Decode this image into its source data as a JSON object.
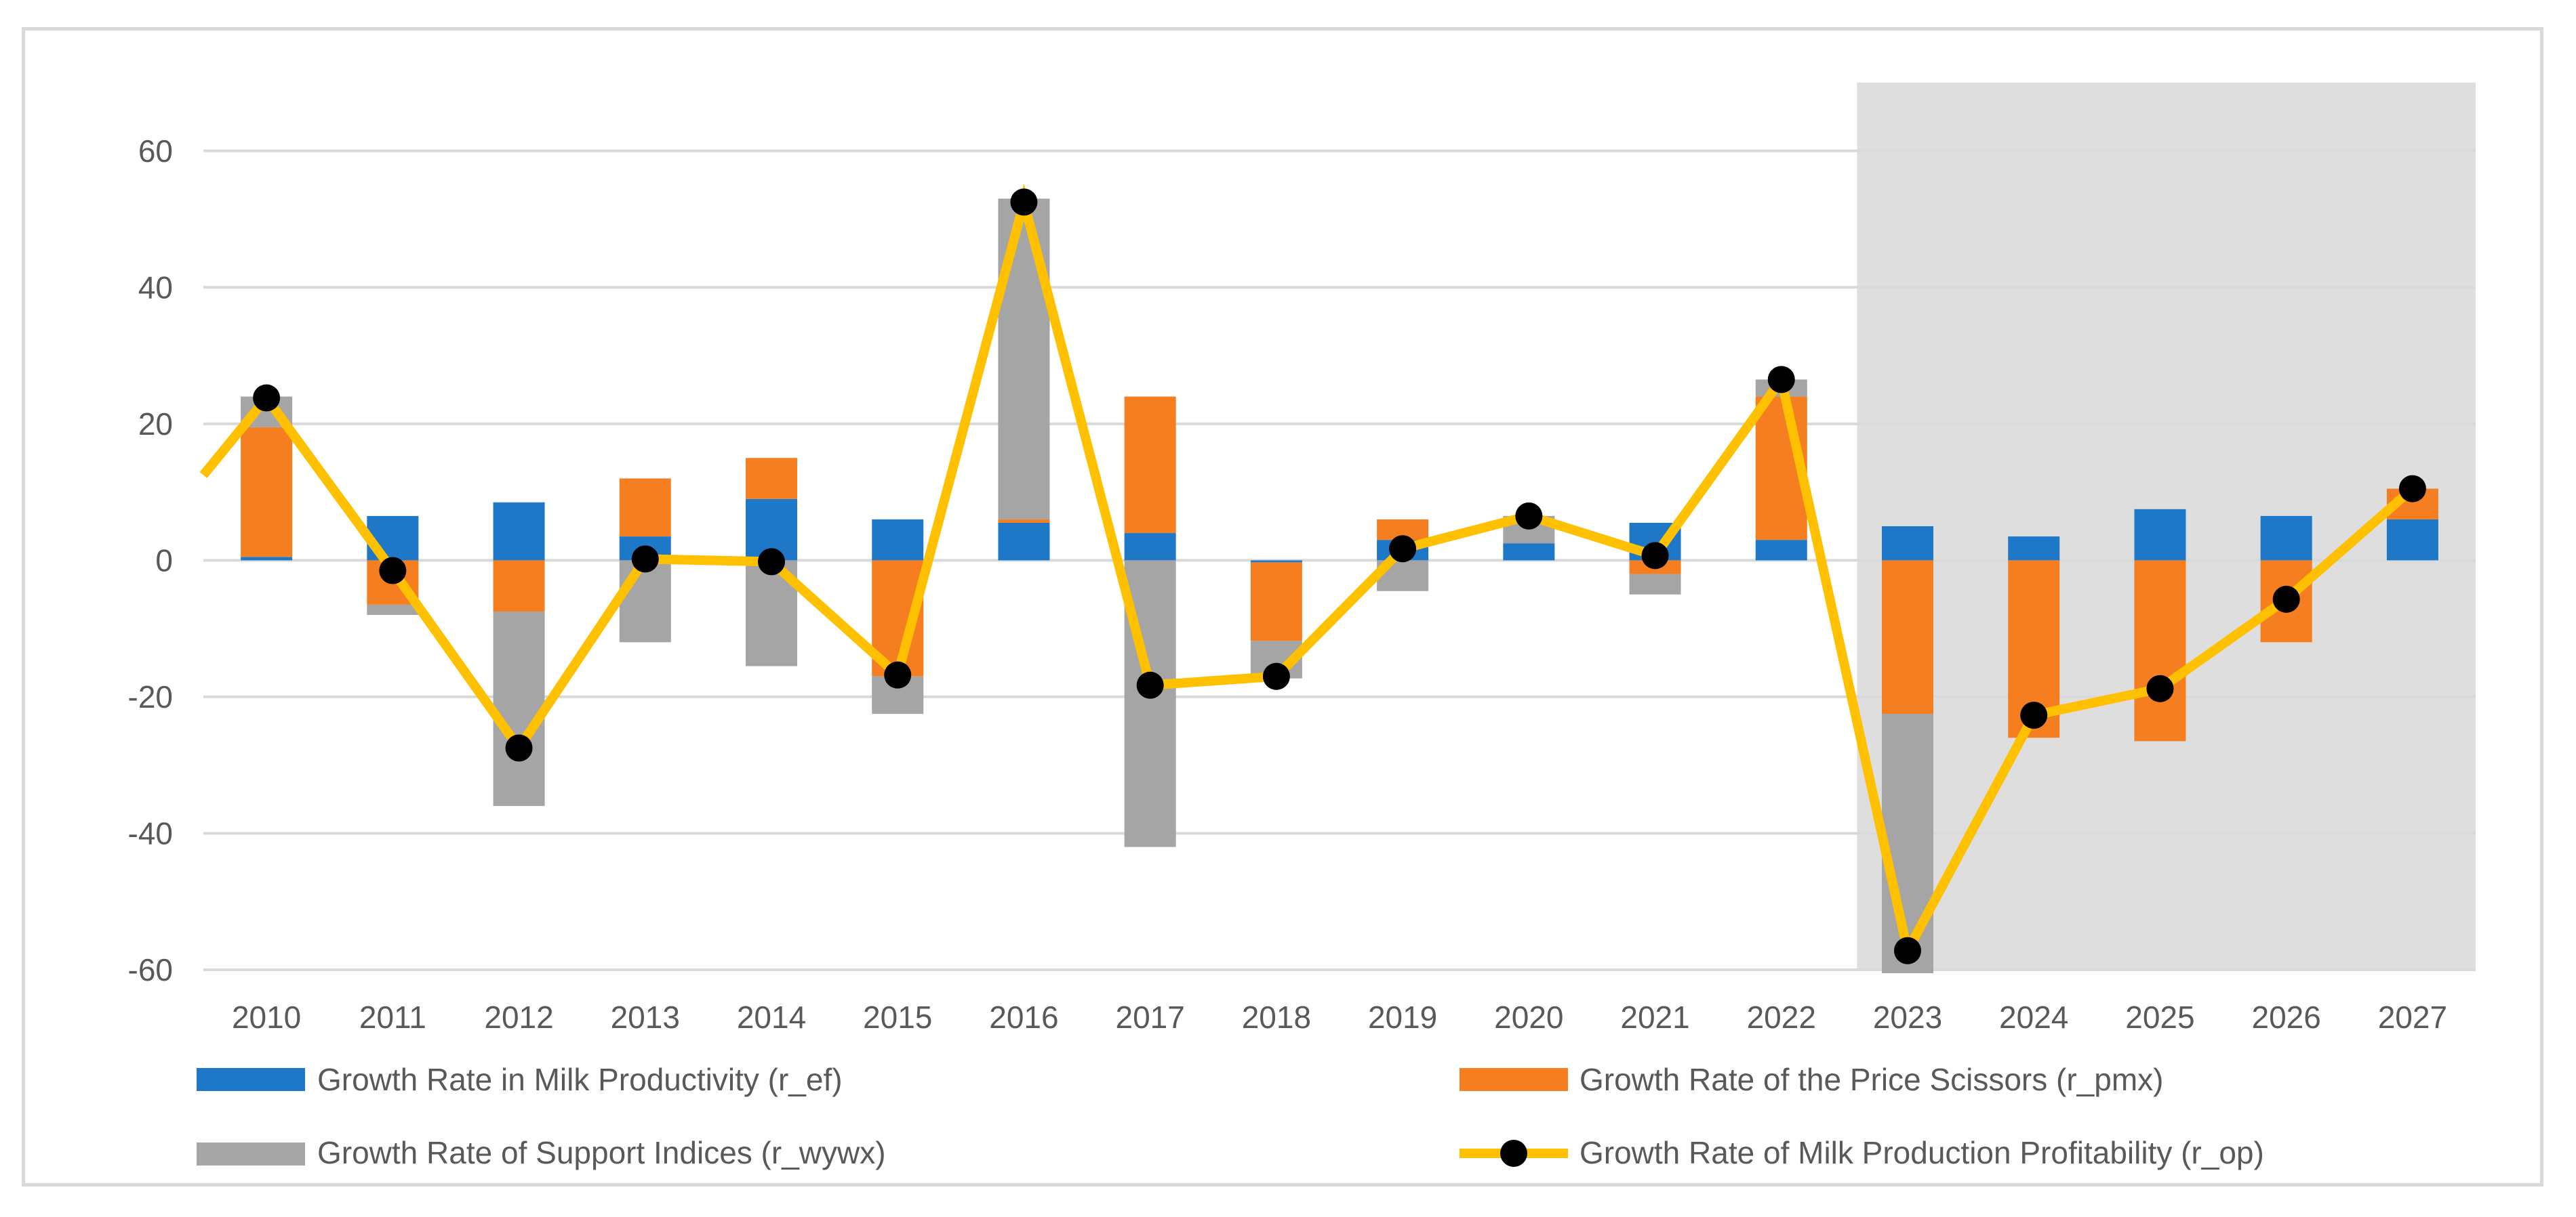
{
  "chart_data": {
    "type": "bar",
    "stacked": true,
    "categories": [
      "2010",
      "2011",
      "2012",
      "2013",
      "2014",
      "2015",
      "2016",
      "2017",
      "2018",
      "2019",
      "2020",
      "2021",
      "2022",
      "2023",
      "2024",
      "2025",
      "2026",
      "2027"
    ],
    "series": [
      {
        "name": "Growth Rate in Milk Productivity (r_ef)",
        "kind": "bar",
        "color": "#1f77c8",
        "values": [
          0.5,
          6.5,
          8.5,
          3.5,
          9.0,
          6.0,
          5.5,
          4.0,
          -0.3,
          3.0,
          2.5,
          5.5,
          3.0,
          5.0,
          3.5,
          7.5,
          6.5,
          6.0
        ]
      },
      {
        "name": "Growth Rate of the Price Scissors (r_pmx)",
        "kind": "bar",
        "color": "#f57f20",
        "values": [
          19.0,
          -6.5,
          -7.5,
          8.5,
          6.0,
          -17.0,
          0.5,
          20.0,
          -11.5,
          3.0,
          0.0,
          -2.0,
          21.0,
          -22.5,
          -26.0,
          -26.5,
          -12.0,
          4.5
        ]
      },
      {
        "name": "Growth Rate of Support Indices (r_wywx)",
        "kind": "bar",
        "color": "#a5a5a5",
        "values": [
          4.5,
          -1.5,
          -28.5,
          -12.0,
          -15.5,
          -5.5,
          47.0,
          -42.0,
          -5.5,
          -4.5,
          4.0,
          -3.0,
          2.5,
          -38.0,
          0.0,
          0.0,
          0.0,
          0.0
        ]
      },
      {
        "name": "Growth Rate of Milk Production Profitability (r_op)",
        "kind": "line",
        "color": "#ffc000",
        "marker_color": "#000000",
        "values": [
          23.8,
          -1.5,
          -27.5,
          0.2,
          -0.2,
          -16.8,
          52.5,
          -18.3,
          -17.0,
          1.7,
          6.5,
          0.7,
          26.5,
          -57.2,
          -22.7,
          -18.8,
          -5.7,
          10.5
        ]
      }
    ],
    "line_start_value": 12.5,
    "ylim": [
      -60,
      70
    ],
    "yticks": [
      "60",
      "40",
      "20",
      "0",
      "-20",
      "-40",
      "-60"
    ],
    "ytick_values": [
      60,
      40,
      20,
      0,
      -20,
      -40,
      -60
    ],
    "forecast_shaded_from": "2023",
    "grid": true,
    "legend_placement": "bottom",
    "title": "",
    "xlabel": "",
    "ylabel": ""
  }
}
